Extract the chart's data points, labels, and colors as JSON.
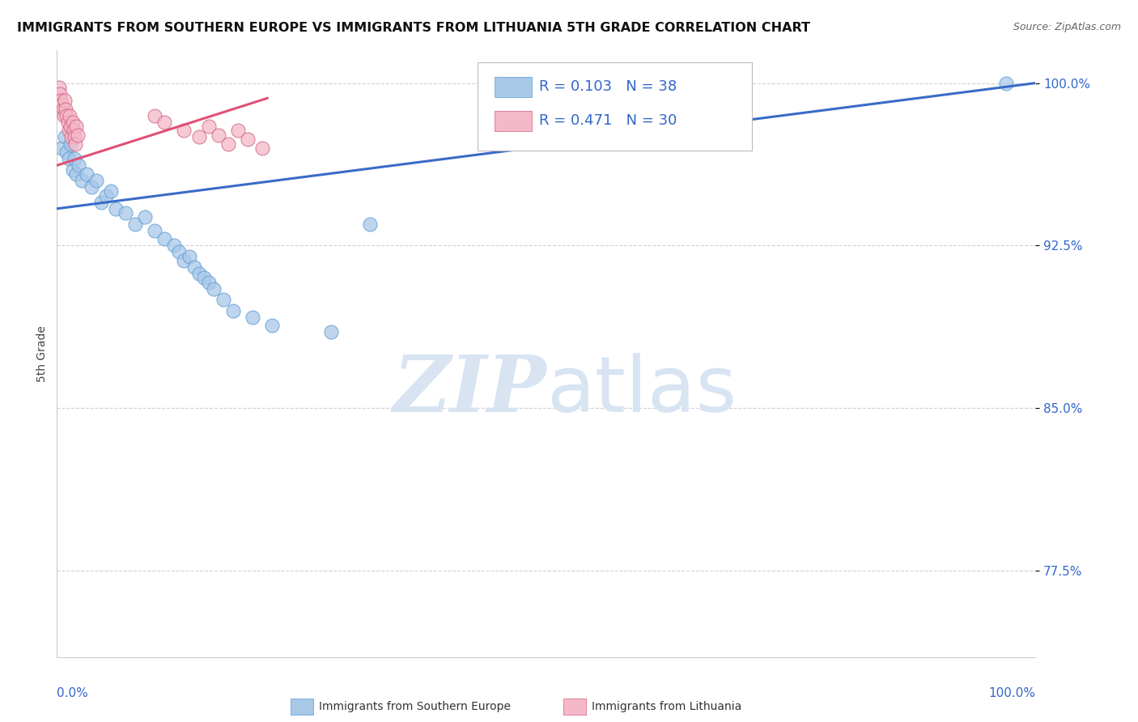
{
  "title": "IMMIGRANTS FROM SOUTHERN EUROPE VS IMMIGRANTS FROM LITHUANIA 5TH GRADE CORRELATION CHART",
  "source": "Source: ZipAtlas.com",
  "ylabel": "5th Grade",
  "y_ticks_pct": [
    77.5,
    85.0,
    92.5,
    100.0
  ],
  "xlim": [
    0.0,
    1.0
  ],
  "ylim": [
    0.735,
    1.015
  ],
  "R_blue": 0.103,
  "N_blue": 38,
  "R_pink": 0.471,
  "N_pink": 30,
  "blue_scatter_x": [
    0.005,
    0.008,
    0.01,
    0.012,
    0.014,
    0.016,
    0.018,
    0.02,
    0.022,
    0.025,
    0.03,
    0.035,
    0.04,
    0.045,
    0.05,
    0.055,
    0.06,
    0.07,
    0.08,
    0.09,
    0.1,
    0.11,
    0.12,
    0.125,
    0.13,
    0.135,
    0.14,
    0.145,
    0.15,
    0.155,
    0.16,
    0.17,
    0.18,
    0.2,
    0.22,
    0.28,
    0.32,
    0.97
  ],
  "blue_scatter_y": [
    0.97,
    0.975,
    0.968,
    0.965,
    0.972,
    0.96,
    0.965,
    0.958,
    0.962,
    0.955,
    0.958,
    0.952,
    0.955,
    0.945,
    0.948,
    0.95,
    0.942,
    0.94,
    0.935,
    0.938,
    0.932,
    0.928,
    0.925,
    0.922,
    0.918,
    0.92,
    0.915,
    0.912,
    0.91,
    0.908,
    0.905,
    0.9,
    0.895,
    0.892,
    0.888,
    0.885,
    0.935,
    1.0
  ],
  "pink_scatter_x": [
    0.002,
    0.003,
    0.004,
    0.005,
    0.006,
    0.007,
    0.008,
    0.009,
    0.01,
    0.011,
    0.012,
    0.013,
    0.014,
    0.015,
    0.016,
    0.017,
    0.018,
    0.019,
    0.02,
    0.021,
    0.1,
    0.11,
    0.13,
    0.145,
    0.155,
    0.165,
    0.175,
    0.185,
    0.195,
    0.21
  ],
  "pink_scatter_y": [
    0.998,
    0.995,
    0.992,
    0.99,
    0.988,
    0.985,
    0.992,
    0.988,
    0.985,
    0.982,
    0.978,
    0.985,
    0.98,
    0.975,
    0.982,
    0.978,
    0.975,
    0.972,
    0.98,
    0.976,
    0.985,
    0.982,
    0.978,
    0.975,
    0.98,
    0.976,
    0.972,
    0.978,
    0.974,
    0.97
  ],
  "blue_trend_x": [
    0.0,
    1.0
  ],
  "blue_trend_y": [
    0.942,
    1.0
  ],
  "pink_trend_x": [
    0.0,
    0.215
  ],
  "pink_trend_y": [
    0.962,
    0.993
  ],
  "blue_fill": "#A8C8E8",
  "blue_edge": "#5B9BD5",
  "pink_fill": "#F4B8C8",
  "pink_edge": "#D06080",
  "blue_line_color": "#3A6BC8",
  "pink_line_color": "#E05075",
  "text_color_blue": "#3366CC",
  "grid_color": "#CCCCCC",
  "watermark_zip_color": "#D8E4F2",
  "watermark_atlas_color": "#D8E4F2"
}
